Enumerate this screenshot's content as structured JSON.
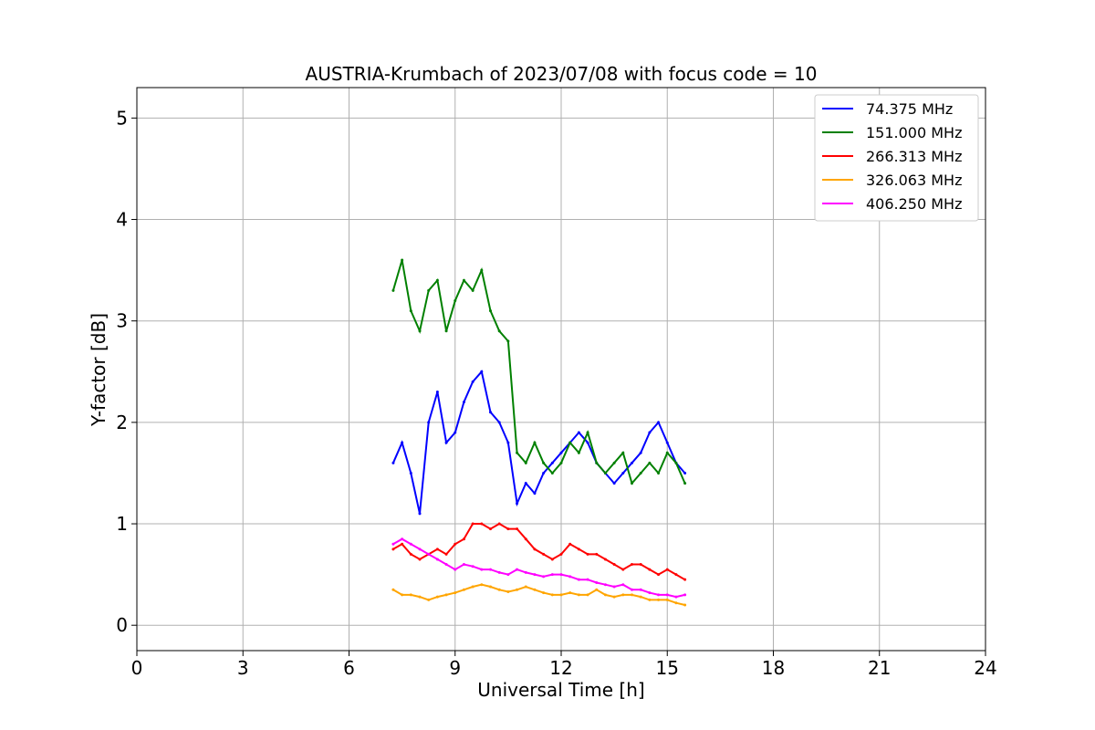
{
  "chart_data": {
    "type": "line",
    "title": "AUSTRIA-Krumbach of 2023/07/08 with focus code = 10",
    "xlabel": "Universal Time [h]",
    "ylabel": "Y-factor [dB]",
    "xlim": [
      0,
      24
    ],
    "ylim": [
      -0.25,
      5.3
    ],
    "xticks": [
      "0",
      "3",
      "6",
      "9",
      "12",
      "15",
      "18",
      "21",
      "24"
    ],
    "yticks": [
      "0",
      "1",
      "2",
      "3",
      "4",
      "5"
    ],
    "grid": true,
    "legend_position": "top-right",
    "series": [
      {
        "name": " 74.375 MHz",
        "color": "#0000ff",
        "x": [
          7.25,
          7.5,
          7.75,
          8.0,
          8.25,
          8.5,
          8.75,
          9.0,
          9.25,
          9.5,
          9.75,
          10.0,
          10.25,
          10.5,
          10.75,
          11.0,
          11.25,
          11.5,
          11.75,
          12.0,
          12.25,
          12.5,
          12.75,
          13.0,
          13.25,
          13.5,
          13.75,
          14.0,
          14.25,
          14.5,
          14.75,
          15.0,
          15.25,
          15.5
        ],
        "y": [
          1.6,
          1.8,
          1.5,
          1.1,
          2.0,
          2.3,
          1.8,
          1.9,
          2.2,
          2.4,
          2.5,
          2.1,
          2.0,
          1.8,
          1.2,
          1.4,
          1.3,
          1.5,
          1.6,
          1.7,
          1.8,
          1.9,
          1.8,
          1.6,
          1.5,
          1.4,
          1.5,
          1.6,
          1.7,
          1.9,
          2.0,
          1.8,
          1.6,
          1.5
        ]
      },
      {
        "name": "151.000 MHz",
        "color": "#008000",
        "x": [
          7.25,
          7.5,
          7.75,
          8.0,
          8.25,
          8.5,
          8.75,
          9.0,
          9.25,
          9.5,
          9.75,
          10.0,
          10.25,
          10.5,
          10.75,
          11.0,
          11.25,
          11.5,
          11.75,
          12.0,
          12.25,
          12.5,
          12.75,
          13.0,
          13.25,
          13.5,
          13.75,
          14.0,
          14.25,
          14.5,
          14.75,
          15.0,
          15.25,
          15.5
        ],
        "y": [
          3.3,
          3.6,
          3.1,
          2.9,
          3.3,
          3.4,
          2.9,
          3.2,
          3.4,
          3.3,
          3.5,
          3.1,
          2.9,
          2.8,
          1.7,
          1.6,
          1.8,
          1.6,
          1.5,
          1.6,
          1.8,
          1.7,
          1.9,
          1.6,
          1.5,
          1.6,
          1.7,
          1.4,
          1.5,
          1.6,
          1.5,
          1.7,
          1.6,
          1.4
        ]
      },
      {
        "name": "266.313 MHz",
        "color": "#ff0000",
        "x": [
          7.25,
          7.5,
          7.75,
          8.0,
          8.25,
          8.5,
          8.75,
          9.0,
          9.25,
          9.5,
          9.75,
          10.0,
          10.25,
          10.5,
          10.75,
          11.0,
          11.25,
          11.5,
          11.75,
          12.0,
          12.25,
          12.5,
          12.75,
          13.0,
          13.25,
          13.5,
          13.75,
          14.0,
          14.25,
          14.5,
          14.75,
          15.0,
          15.25,
          15.5
        ],
        "y": [
          0.75,
          0.8,
          0.7,
          0.65,
          0.7,
          0.75,
          0.7,
          0.8,
          0.85,
          1.0,
          1.0,
          0.95,
          1.0,
          0.95,
          0.95,
          0.85,
          0.75,
          0.7,
          0.65,
          0.7,
          0.8,
          0.75,
          0.7,
          0.7,
          0.65,
          0.6,
          0.55,
          0.6,
          0.6,
          0.55,
          0.5,
          0.55,
          0.5,
          0.45
        ]
      },
      {
        "name": "326.063 MHz",
        "color": "#ffa500",
        "x": [
          7.25,
          7.5,
          7.75,
          8.0,
          8.25,
          8.5,
          8.75,
          9.0,
          9.25,
          9.5,
          9.75,
          10.0,
          10.25,
          10.5,
          10.75,
          11.0,
          11.25,
          11.5,
          11.75,
          12.0,
          12.25,
          12.5,
          12.75,
          13.0,
          13.25,
          13.5,
          13.75,
          14.0,
          14.25,
          14.5,
          14.75,
          15.0,
          15.25,
          15.5
        ],
        "y": [
          0.35,
          0.3,
          0.3,
          0.28,
          0.25,
          0.28,
          0.3,
          0.32,
          0.35,
          0.38,
          0.4,
          0.38,
          0.35,
          0.33,
          0.35,
          0.38,
          0.35,
          0.32,
          0.3,
          0.3,
          0.32,
          0.3,
          0.3,
          0.35,
          0.3,
          0.28,
          0.3,
          0.3,
          0.28,
          0.25,
          0.25,
          0.25,
          0.22,
          0.2
        ]
      },
      {
        "name": "406.250 MHz",
        "color": "#ff00ff",
        "x": [
          7.25,
          7.5,
          7.75,
          8.0,
          8.25,
          8.5,
          8.75,
          9.0,
          9.25,
          9.5,
          9.75,
          10.0,
          10.25,
          10.5,
          10.75,
          11.0,
          11.25,
          11.5,
          11.75,
          12.0,
          12.25,
          12.5,
          12.75,
          13.0,
          13.25,
          13.5,
          13.75,
          14.0,
          14.25,
          14.5,
          14.75,
          15.0,
          15.25,
          15.5
        ],
        "y": [
          0.8,
          0.85,
          0.8,
          0.75,
          0.7,
          0.65,
          0.6,
          0.55,
          0.6,
          0.58,
          0.55,
          0.55,
          0.52,
          0.5,
          0.55,
          0.52,
          0.5,
          0.48,
          0.5,
          0.5,
          0.48,
          0.45,
          0.45,
          0.42,
          0.4,
          0.38,
          0.4,
          0.35,
          0.35,
          0.32,
          0.3,
          0.3,
          0.28,
          0.3
        ]
      }
    ]
  }
}
